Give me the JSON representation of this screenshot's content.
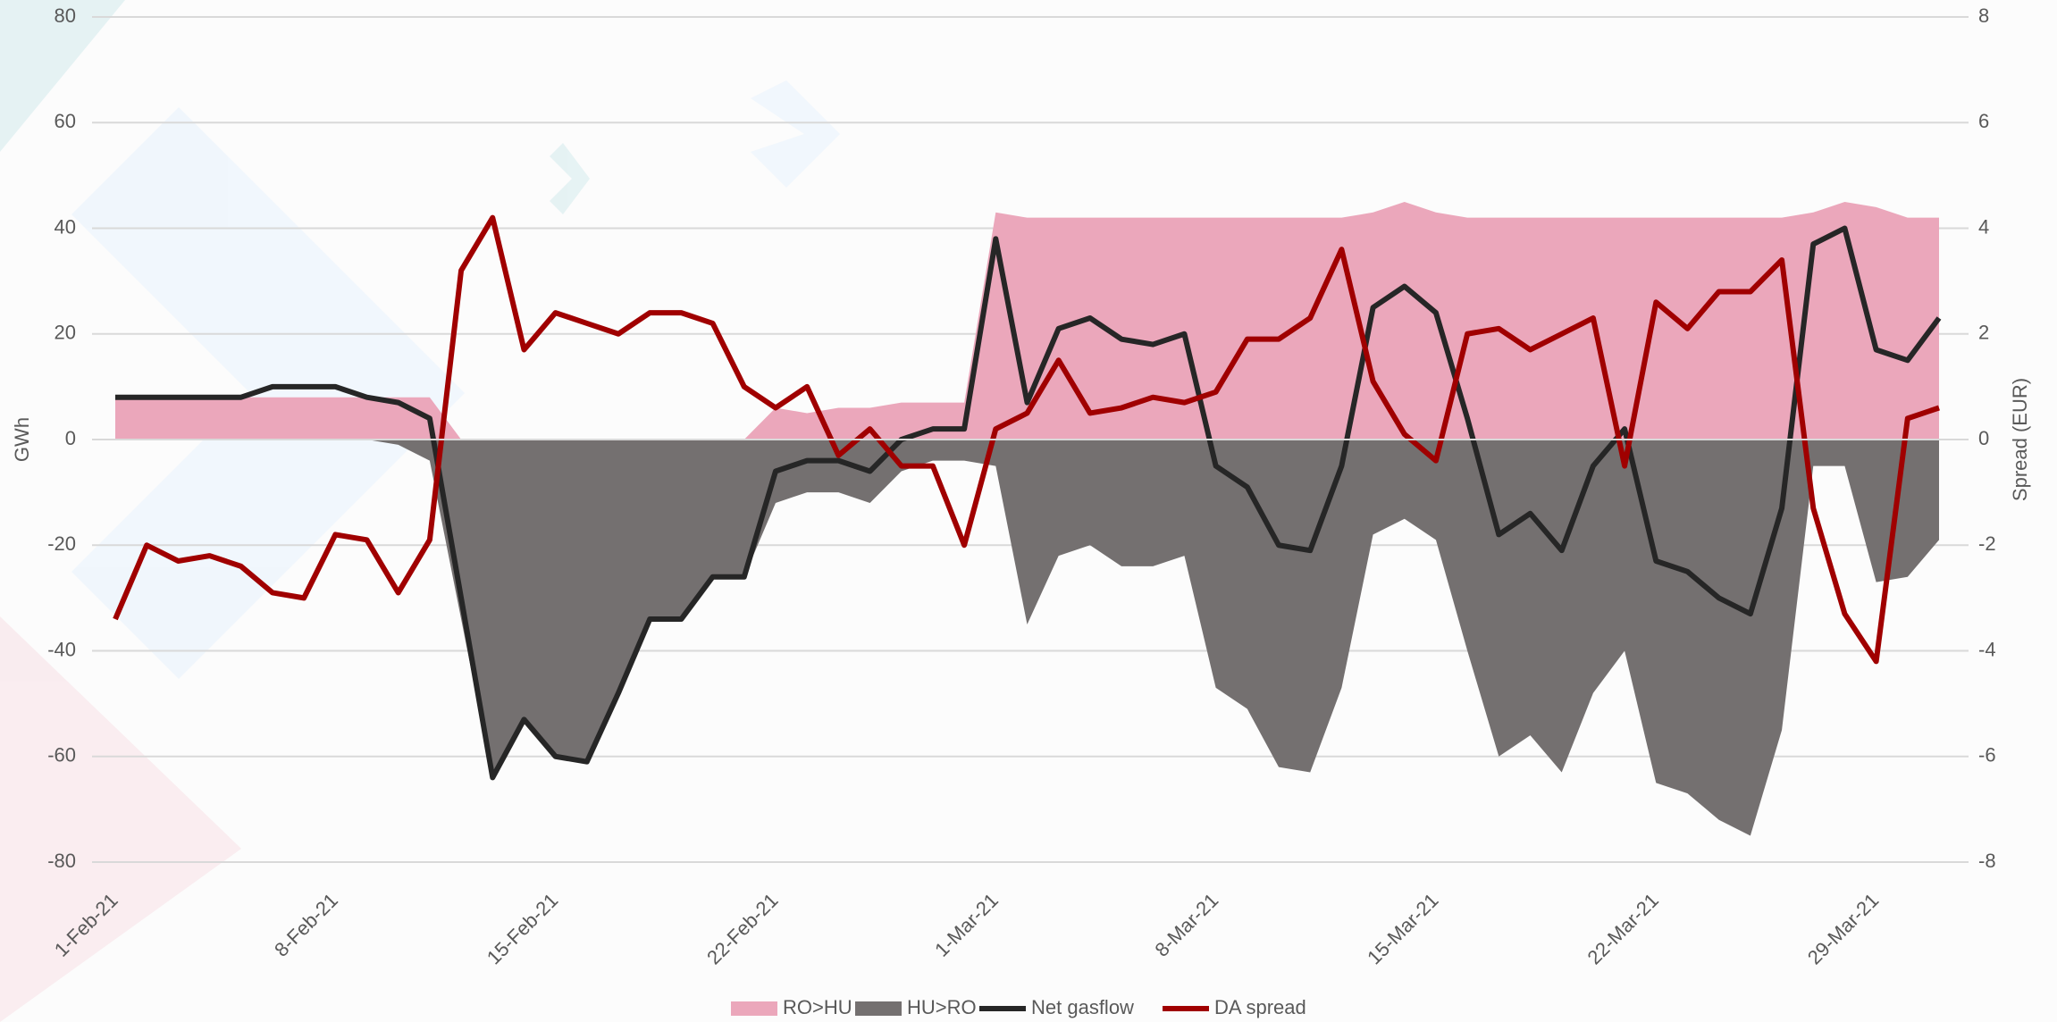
{
  "chart_data": {
    "type": "combo",
    "y_label": "GWh",
    "y2_label": "Spread (EUR)",
    "categories": [
      "1-Feb-21",
      null,
      null,
      null,
      null,
      null,
      null,
      "8-Feb-21",
      null,
      null,
      null,
      null,
      null,
      null,
      "15-Feb-21",
      null,
      null,
      null,
      null,
      null,
      null,
      "22-Feb-21",
      null,
      null,
      null,
      null,
      null,
      null,
      "1-Mar-21",
      null,
      null,
      null,
      null,
      null,
      null,
      "8-Mar-21",
      null,
      null,
      null,
      null,
      null,
      null,
      "15-Mar-21",
      null,
      null,
      null,
      null,
      null,
      null,
      "22-Mar-21",
      null,
      null,
      null,
      null,
      null,
      null,
      "29-Mar-21",
      null,
      null
    ],
    "ylim": [
      -80,
      80
    ],
    "yticks": [
      -80,
      -60,
      -40,
      -20,
      0,
      20,
      40,
      60,
      80
    ],
    "y2lim": [
      -8,
      8
    ],
    "y2ticks": [
      -8,
      -6,
      -4,
      -2,
      0,
      2,
      4,
      6,
      8
    ],
    "grid": true,
    "legend": "bottom",
    "series": [
      {
        "name": "RO>HU",
        "kind": "area",
        "color": "#eba7bb",
        "values": [
          8,
          8,
          8,
          8,
          8,
          8,
          8,
          8,
          8,
          8,
          8,
          0,
          0,
          0,
          0,
          0,
          0,
          0,
          0,
          0,
          0,
          6,
          5,
          6,
          6,
          7,
          7,
          7,
          43,
          42,
          42,
          42,
          42,
          42,
          42,
          42,
          42,
          42,
          42,
          42,
          43,
          45,
          43,
          42,
          42,
          42,
          42,
          42,
          42,
          42,
          42,
          42,
          42,
          42,
          43,
          45,
          44,
          42,
          42
        ]
      },
      {
        "name": "HU>RO",
        "kind": "area",
        "color": "#747070",
        "values": [
          0,
          0,
          0,
          0,
          0,
          0,
          0,
          0,
          0,
          -1,
          -4,
          -34,
          -64,
          -53,
          -60,
          -61,
          -48,
          -34,
          -34,
          -26,
          -26,
          -12,
          -10,
          -10,
          -12,
          -6,
          -4,
          -4,
          -5,
          -35,
          -22,
          -20,
          -24,
          -24,
          -22,
          -47,
          -51,
          -62,
          -63,
          -47,
          -18,
          -15,
          -19,
          -40,
          -60,
          -56,
          -63,
          -48,
          -40,
          -65,
          -67,
          -72,
          -75,
          -55,
          -5,
          -5,
          -27,
          -26,
          -19
        ]
      },
      {
        "name": "Net gasflow",
        "kind": "line",
        "color": "#262626",
        "values": [
          8,
          8,
          8,
          8,
          8,
          10,
          10,
          10,
          8,
          7,
          4,
          -30,
          -64,
          -53,
          -60,
          -61,
          -48,
          -34,
          -34,
          -26,
          -26,
          -6,
          -4,
          -4,
          -6,
          0,
          2,
          2,
          38,
          7,
          21,
          23,
          19,
          18,
          20,
          -5,
          -9,
          -20,
          -21,
          -5,
          25,
          29,
          24,
          4,
          -18,
          -14,
          -21,
          -5,
          2,
          -23,
          -25,
          -30,
          -33,
          -13,
          37,
          40,
          17,
          15,
          23
        ]
      },
      {
        "name": "DA spread",
        "kind": "line",
        "axis": "y2",
        "color": "#a00000",
        "values": [
          -3.4,
          -2.0,
          -2.3,
          -2.2,
          -2.4,
          -2.9,
          -3.0,
          -1.8,
          -1.9,
          -2.9,
          -1.9,
          3.2,
          4.2,
          1.7,
          2.4,
          2.2,
          2.0,
          2.4,
          2.4,
          2.2,
          1.0,
          0.6,
          1.0,
          -0.3,
          0.2,
          -0.5,
          -0.5,
          -2.0,
          0.2,
          0.5,
          1.5,
          0.5,
          0.6,
          0.8,
          0.7,
          0.9,
          1.9,
          1.9,
          2.3,
          3.6,
          1.1,
          0.1,
          -0.4,
          2.0,
          2.1,
          1.7,
          2.0,
          2.3,
          -0.5,
          2.6,
          2.1,
          2.8,
          2.8,
          3.4,
          -1.3,
          -3.3,
          -4.2,
          0.4,
          0.6
        ]
      }
    ]
  }
}
